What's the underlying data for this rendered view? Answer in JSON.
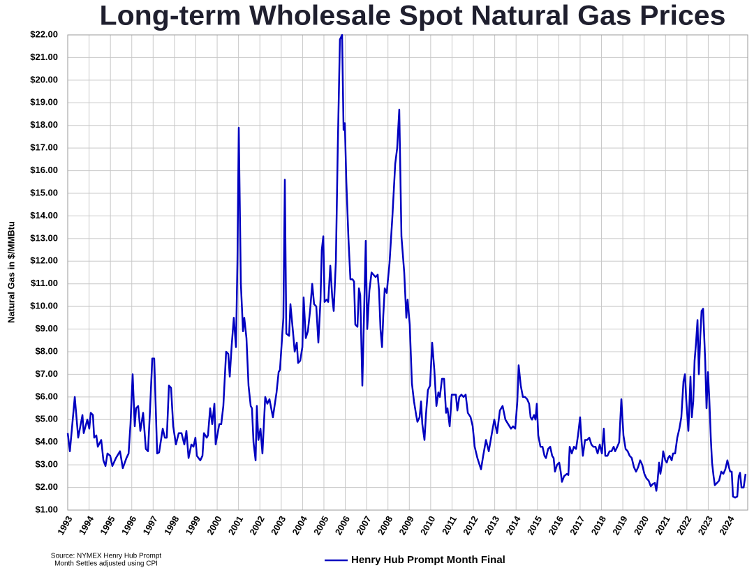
{
  "chart_data": {
    "type": "line",
    "title": "Long-term Wholesale Spot Natural Gas Prices",
    "y_label": "Natural Gas in $/MMBtu",
    "source": [
      "Source: NYMEX Henry Hub Prompt",
      "Month Settles adjusted using CPI"
    ],
    "grid": true,
    "xlim": [
      1993,
      2024.85
    ],
    "xticks": [
      1993,
      1994,
      1995,
      1996,
      1997,
      1998,
      1999,
      2000,
      2001,
      2002,
      2003,
      2004,
      2005,
      2006,
      2007,
      2008,
      2009,
      2010,
      2011,
      2012,
      2013,
      2014,
      2015,
      2016,
      2017,
      2018,
      2019,
      2020,
      2021,
      2022,
      2023,
      2024
    ],
    "ylim": [
      1,
      22
    ],
    "yticks": [
      {
        "value": 1,
        "label": "$1.00"
      },
      {
        "value": 2,
        "label": "$2.00"
      },
      {
        "value": 3,
        "label": "$3.00"
      },
      {
        "value": 4,
        "label": "$4.00"
      },
      {
        "value": 5,
        "label": "$5.00"
      },
      {
        "value": 6,
        "label": "$6.00"
      },
      {
        "value": 7,
        "label": "$7.00"
      },
      {
        "value": 8,
        "label": "$8.00"
      },
      {
        "value": 9,
        "label": "$9.00"
      },
      {
        "value": 10,
        "label": "$10.00"
      },
      {
        "value": 11,
        "label": "$11.00"
      },
      {
        "value": 12,
        "label": "$12.00"
      },
      {
        "value": 13,
        "label": "$13.00"
      },
      {
        "value": 14,
        "label": "$14.00"
      },
      {
        "value": 15,
        "label": "$15.00"
      },
      {
        "value": 16,
        "label": "$16.00"
      },
      {
        "value": 17,
        "label": "$17.00"
      },
      {
        "value": 18,
        "label": "$18.00"
      },
      {
        "value": 19,
        "label": "$19.00"
      },
      {
        "value": 20,
        "label": "$20.00"
      },
      {
        "value": 21,
        "label": "$21.00"
      },
      {
        "value": 22,
        "label": "$22.00"
      }
    ],
    "x": [
      1993.0,
      1993.1,
      1993.33,
      1993.49,
      1993.69,
      1993.75,
      1993.92,
      1994.01,
      1994.08,
      1994.18,
      1994.24,
      1994.34,
      1994.41,
      1994.57,
      1994.67,
      1994.77,
      1994.86,
      1994.99,
      1995.09,
      1995.26,
      1995.45,
      1995.58,
      1995.75,
      1995.85,
      1995.94,
      1996.04,
      1996.14,
      1996.2,
      1996.3,
      1996.4,
      1996.53,
      1996.66,
      1996.76,
      1996.86,
      1996.96,
      1997.05,
      1997.19,
      1997.28,
      1997.45,
      1997.55,
      1997.64,
      1997.74,
      1997.84,
      1997.94,
      1998.07,
      1998.2,
      1998.33,
      1998.46,
      1998.56,
      1998.66,
      1998.79,
      1998.89,
      1998.98,
      1999.05,
      1999.21,
      1999.31,
      1999.38,
      1999.51,
      1999.57,
      1999.67,
      1999.77,
      1999.87,
      1999.93,
      2000.1,
      2000.19,
      2000.29,
      2000.42,
      2000.52,
      2000.59,
      2000.68,
      2000.78,
      2000.88,
      2000.95,
      2001.01,
      2001.11,
      2001.21,
      2001.27,
      2001.37,
      2001.47,
      2001.57,
      2001.63,
      2001.7,
      2001.8,
      2001.86,
      2001.93,
      2002.03,
      2002.12,
      2002.25,
      2002.35,
      2002.45,
      2002.61,
      2002.78,
      2002.88,
      2002.94,
      2003.1,
      2003.17,
      2003.24,
      2003.37,
      2003.43,
      2003.56,
      2003.63,
      2003.73,
      2003.79,
      2003.89,
      2003.99,
      2004.05,
      2004.15,
      2004.25,
      2004.35,
      2004.45,
      2004.54,
      2004.64,
      2004.74,
      2004.84,
      2004.9,
      2004.97,
      2005.03,
      2005.13,
      2005.2,
      2005.3,
      2005.39,
      2005.46,
      2005.56,
      2005.65,
      2005.75,
      2005.85,
      2005.92,
      2005.98,
      2006.05,
      2006.15,
      2006.24,
      2006.34,
      2006.41,
      2006.47,
      2006.57,
      2006.64,
      2006.7,
      2006.8,
      2006.9,
      2006.96,
      2007.03,
      2007.13,
      2007.23,
      2007.32,
      2007.42,
      2007.52,
      2007.58,
      2007.65,
      2007.72,
      2007.78,
      2007.85,
      2007.94,
      2008.07,
      2008.21,
      2008.34,
      2008.43,
      2008.53,
      2008.63,
      2008.76,
      2008.86,
      2008.92,
      2009.02,
      2009.12,
      2009.22,
      2009.32,
      2009.38,
      2009.48,
      2009.55,
      2009.61,
      2009.71,
      2009.78,
      2009.87,
      2009.97,
      2010.07,
      2010.17,
      2010.27,
      2010.36,
      2010.43,
      2010.53,
      2010.63,
      2010.72,
      2010.79,
      2010.89,
      2010.99,
      2011.08,
      2011.18,
      2011.25,
      2011.34,
      2011.44,
      2011.54,
      2011.64,
      2011.74,
      2011.87,
      2011.97,
      2012.06,
      2012.19,
      2012.29,
      2012.36,
      2012.46,
      2012.59,
      2012.72,
      2012.85,
      2012.98,
      2013.11,
      2013.24,
      2013.37,
      2013.5,
      2013.63,
      2013.76,
      2013.86,
      2013.96,
      2014.06,
      2014.12,
      2014.22,
      2014.32,
      2014.42,
      2014.52,
      2014.61,
      2014.68,
      2014.75,
      2014.84,
      2014.91,
      2014.97,
      2015.04,
      2015.14,
      2015.24,
      2015.33,
      2015.4,
      2015.5,
      2015.6,
      2015.69,
      2015.76,
      2015.82,
      2015.92,
      2016.02,
      2016.09,
      2016.15,
      2016.25,
      2016.38,
      2016.45,
      2016.51,
      2016.61,
      2016.71,
      2016.81,
      2016.9,
      2017.0,
      2017.07,
      2017.13,
      2017.23,
      2017.33,
      2017.43,
      2017.53,
      2017.62,
      2017.72,
      2017.82,
      2017.92,
      2018.02,
      2018.11,
      2018.18,
      2018.28,
      2018.38,
      2018.47,
      2018.57,
      2018.64,
      2018.74,
      2018.83,
      2018.93,
      2019.03,
      2019.13,
      2019.23,
      2019.32,
      2019.42,
      2019.52,
      2019.62,
      2019.72,
      2019.81,
      2019.91,
      2020.01,
      2020.11,
      2020.21,
      2020.31,
      2020.4,
      2020.5,
      2020.57,
      2020.63,
      2020.7,
      2020.76,
      2020.83,
      2020.89,
      2020.99,
      2021.06,
      2021.12,
      2021.19,
      2021.29,
      2021.35,
      2021.45,
      2021.55,
      2021.65,
      2021.74,
      2021.84,
      2021.91,
      2021.97,
      2022.07,
      2022.17,
      2022.23,
      2022.3,
      2022.36,
      2022.43,
      2022.5,
      2022.56,
      2022.63,
      2022.69,
      2022.76,
      2022.86,
      2022.92,
      2022.99,
      2023.05,
      2023.12,
      2023.18,
      2023.25,
      2023.31,
      2023.41,
      2023.51,
      2023.61,
      2023.71,
      2023.8,
      2023.9,
      2023.97,
      2024.03,
      2024.1,
      2024.16,
      2024.26,
      2024.36,
      2024.43,
      2024.49,
      2024.56,
      2024.66,
      2024.75
    ],
    "series": [
      {
        "name": "Henry Hub Prompt Month Final",
        "color": "#0000c0",
        "values": [
          4.4,
          3.6,
          6.0,
          4.2,
          5.2,
          4.4,
          5.0,
          4.6,
          5.3,
          5.2,
          4.2,
          4.3,
          3.8,
          4.1,
          3.2,
          2.95,
          3.5,
          3.4,
          2.95,
          3.3,
          3.6,
          2.85,
          3.3,
          3.5,
          4.8,
          7.0,
          4.7,
          5.5,
          5.6,
          4.5,
          5.3,
          3.7,
          3.6,
          5.5,
          7.7,
          7.7,
          3.5,
          3.55,
          4.6,
          4.2,
          4.2,
          6.5,
          6.4,
          4.7,
          3.9,
          4.4,
          4.4,
          3.9,
          4.5,
          3.3,
          3.9,
          3.8,
          4.2,
          3.4,
          3.2,
          3.4,
          4.4,
          4.2,
          4.3,
          5.5,
          4.8,
          5.7,
          3.9,
          4.8,
          4.8,
          5.6,
          8.0,
          7.9,
          6.9,
          8.3,
          9.5,
          8.2,
          12.0,
          17.9,
          11.0,
          8.9,
          9.5,
          8.6,
          6.5,
          5.6,
          5.5,
          4.0,
          3.2,
          5.6,
          4.1,
          4.6,
          3.5,
          6.0,
          5.7,
          5.9,
          5.1,
          6.2,
          7.1,
          7.2,
          9.5,
          15.6,
          8.8,
          8.7,
          10.1,
          8.8,
          8.0,
          8.4,
          7.5,
          7.6,
          8.2,
          10.4,
          8.6,
          8.9,
          9.8,
          11.0,
          10.1,
          10.0,
          8.4,
          10.3,
          12.5,
          13.1,
          10.2,
          10.3,
          10.2,
          11.8,
          10.4,
          9.8,
          12.0,
          17.0,
          21.8,
          22.0,
          17.8,
          18.1,
          15.5,
          13.0,
          11.2,
          11.2,
          11.1,
          9.2,
          9.1,
          10.8,
          10.5,
          6.5,
          10.5,
          12.9,
          9.0,
          10.7,
          11.5,
          11.4,
          11.3,
          11.4,
          10.7,
          9.0,
          8.2,
          9.6,
          10.8,
          10.6,
          11.9,
          14.0,
          16.3,
          17.0,
          18.7,
          13.1,
          11.5,
          9.5,
          10.3,
          9.2,
          6.6,
          5.8,
          5.2,
          4.9,
          5.1,
          5.8,
          4.8,
          4.1,
          5.2,
          6.3,
          6.5,
          8.4,
          7.2,
          5.6,
          6.2,
          6.0,
          6.8,
          6.8,
          5.3,
          5.5,
          4.7,
          6.1,
          6.1,
          6.1,
          5.4,
          6.0,
          6.1,
          6.0,
          6.1,
          5.3,
          5.1,
          4.7,
          3.8,
          3.3,
          3.0,
          2.8,
          3.4,
          4.1,
          3.6,
          4.3,
          5.0,
          4.4,
          5.4,
          5.6,
          5.0,
          4.8,
          4.6,
          4.7,
          4.6,
          5.8,
          7.4,
          6.5,
          6.0,
          6.0,
          5.9,
          5.7,
          5.1,
          5.0,
          5.2,
          5.0,
          5.7,
          4.3,
          3.8,
          3.8,
          3.4,
          3.3,
          3.7,
          3.8,
          3.4,
          3.3,
          2.7,
          3.0,
          3.1,
          2.7,
          2.25,
          2.5,
          2.6,
          2.55,
          3.8,
          3.5,
          3.8,
          3.7,
          4.3,
          5.1,
          4.0,
          3.4,
          4.1,
          4.1,
          4.2,
          3.9,
          3.8,
          3.8,
          3.5,
          3.9,
          3.5,
          4.6,
          3.4,
          3.4,
          3.6,
          3.6,
          3.8,
          3.6,
          3.8,
          4.0,
          5.9,
          4.3,
          3.7,
          3.6,
          3.4,
          3.3,
          2.9,
          2.7,
          2.9,
          3.2,
          3.0,
          2.6,
          2.4,
          2.3,
          2.05,
          2.15,
          2.2,
          1.85,
          2.3,
          3.1,
          2.6,
          3.0,
          3.6,
          3.2,
          3.1,
          3.3,
          3.4,
          3.2,
          3.5,
          3.5,
          4.2,
          4.6,
          5.1,
          6.7,
          7.0,
          5.9,
          4.5,
          6.9,
          5.1,
          5.8,
          7.6,
          8.4,
          9.4,
          7.0,
          8.7,
          9.8,
          9.9,
          7.6,
          5.5,
          7.1,
          5.9,
          4.2,
          3.1,
          2.5,
          2.1,
          2.2,
          2.3,
          2.7,
          2.6,
          2.8,
          3.2,
          2.9,
          2.7,
          2.7,
          1.6,
          1.55,
          1.6,
          2.5,
          2.65,
          2.0,
          2.0,
          2.6
        ]
      }
    ]
  }
}
